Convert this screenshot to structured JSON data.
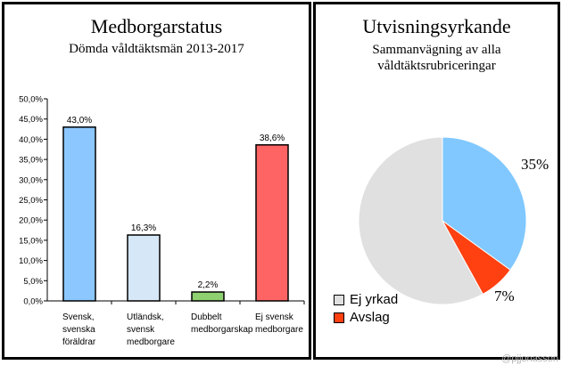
{
  "chart_data": [
    {
      "type": "bar",
      "title": "Medborgarstatus",
      "subtitle": "Dömda våldtäktsmän 2013-2017",
      "categories": [
        [
          "Svensk,",
          "svenska",
          "föräldrar"
        ],
        [
          "Utländsk,",
          "svensk",
          "medborgare"
        ],
        [
          "Dubbelt",
          "medborgarskap"
        ],
        [
          "Ej svensk",
          "medborgare"
        ]
      ],
      "values": [
        43.0,
        16.3,
        2.2,
        38.6
      ],
      "value_labels": [
        "43,0%",
        "16,3%",
        "2,2%",
        "38,6%"
      ],
      "colors": [
        "#8cc8ff",
        "#d6e8f7",
        "#8fd070",
        "#ff6464"
      ],
      "ylim": [
        0,
        50
      ],
      "yticks": [
        "0,0%",
        "5,0%",
        "10,0%",
        "15,0%",
        "20,0%",
        "25,0%",
        "30,0%",
        "35,0%",
        "40,0%",
        "45,0%",
        "50,0%"
      ],
      "xlabel": "",
      "ylabel": ""
    },
    {
      "type": "pie",
      "title": "Utvisningsyrkande",
      "subtitle_lines": [
        "Sammanvägning av alla",
        "våldtäktsrubriceringar"
      ],
      "slices": [
        {
          "name": "Ej yrkad",
          "value": 58,
          "color": "#e0e0e0",
          "label": "",
          "in_legend": true
        },
        {
          "name": "",
          "value": 35,
          "color": "#80c8ff",
          "label": "35%",
          "in_legend": false
        },
        {
          "name": "Avslag",
          "value": 7,
          "color": "#ff4010",
          "label": "7%",
          "in_legend": true
        }
      ]
    }
  ],
  "watermark": "@pjjonasson"
}
